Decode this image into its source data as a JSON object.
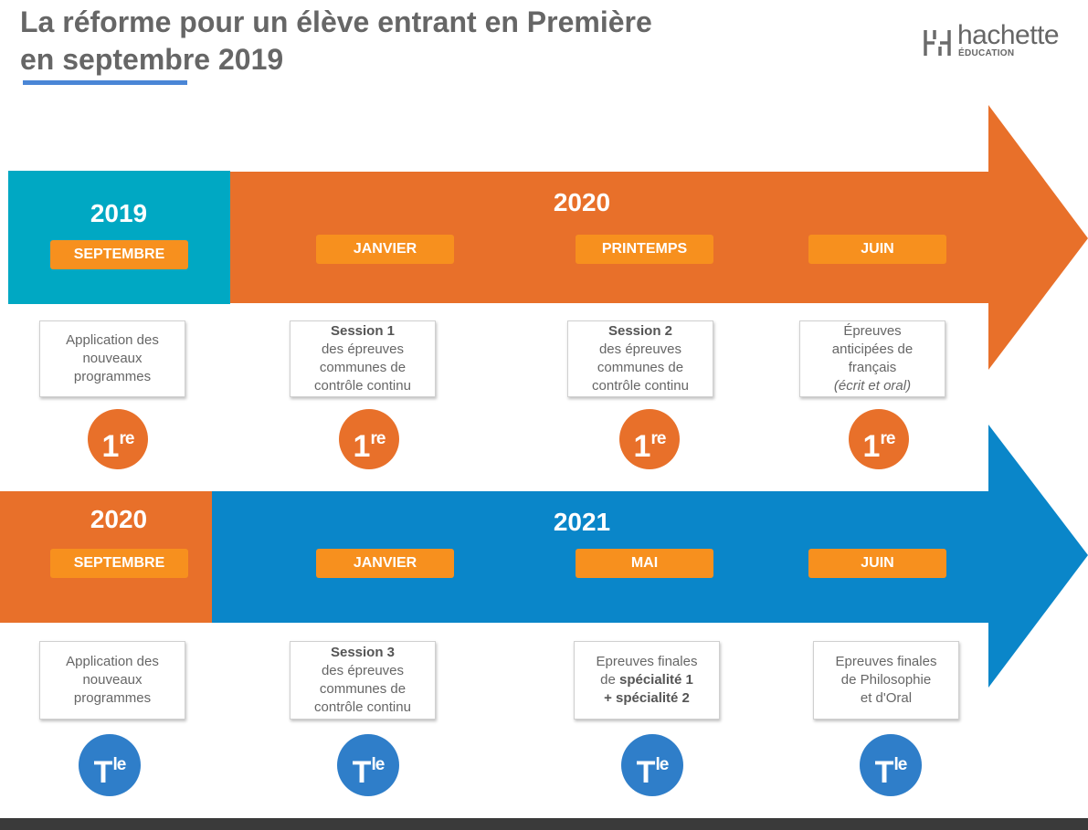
{
  "title": {
    "line1": "La réforme pour un élève entrant en Première",
    "line2": "en septembre 2019"
  },
  "logo": {
    "name": "hachette",
    "sub": "ÉDUCATION"
  },
  "colors": {
    "teal": "#00a8c3",
    "orange": "#e8702a",
    "blue": "#0a86c9",
    "pill": "#f7901e",
    "badge_blue": "#2f7ec9",
    "text_gray": "#666666"
  },
  "row1": {
    "start_year": "2019",
    "main_year": "2020",
    "months": [
      "SEPTEMBRE",
      "JANVIER",
      "PRINTEMPS",
      "JUIN"
    ],
    "boxes": [
      {
        "lines": [
          "Application des",
          "nouveaux",
          "programmes"
        ]
      },
      {
        "bold": "Session 1",
        "lines": [
          "des épreuves",
          "communes de",
          "contrôle continu"
        ]
      },
      {
        "bold": "Session 2",
        "lines": [
          "des épreuves",
          "communes de",
          "contrôle continu"
        ]
      },
      {
        "lines": [
          "Épreuves",
          "anticipées de",
          "français"
        ],
        "italic": "(écrit et oral)"
      }
    ],
    "badge": {
      "main": "1",
      "sup": "re"
    }
  },
  "row2": {
    "start_year": "2020",
    "main_year": "2021",
    "months": [
      "SEPTEMBRE",
      "JANVIER",
      "MAI",
      "JUIN"
    ],
    "boxes": [
      {
        "lines": [
          "Application des",
          "nouveaux",
          "programmes"
        ]
      },
      {
        "bold": "Session 3",
        "lines": [
          "des épreuves",
          "communes de",
          "contrôle continu"
        ]
      },
      {
        "line1": "Epreuves finales",
        "line2_prefix": "de ",
        "line2_bold": "spécialité 1",
        "line3_bold": "+ spécialité 2"
      },
      {
        "lines": [
          "Epreuves finales",
          "de Philosophie",
          "et d'Oral"
        ]
      }
    ],
    "badge": {
      "main": "T",
      "sup": "le"
    }
  }
}
